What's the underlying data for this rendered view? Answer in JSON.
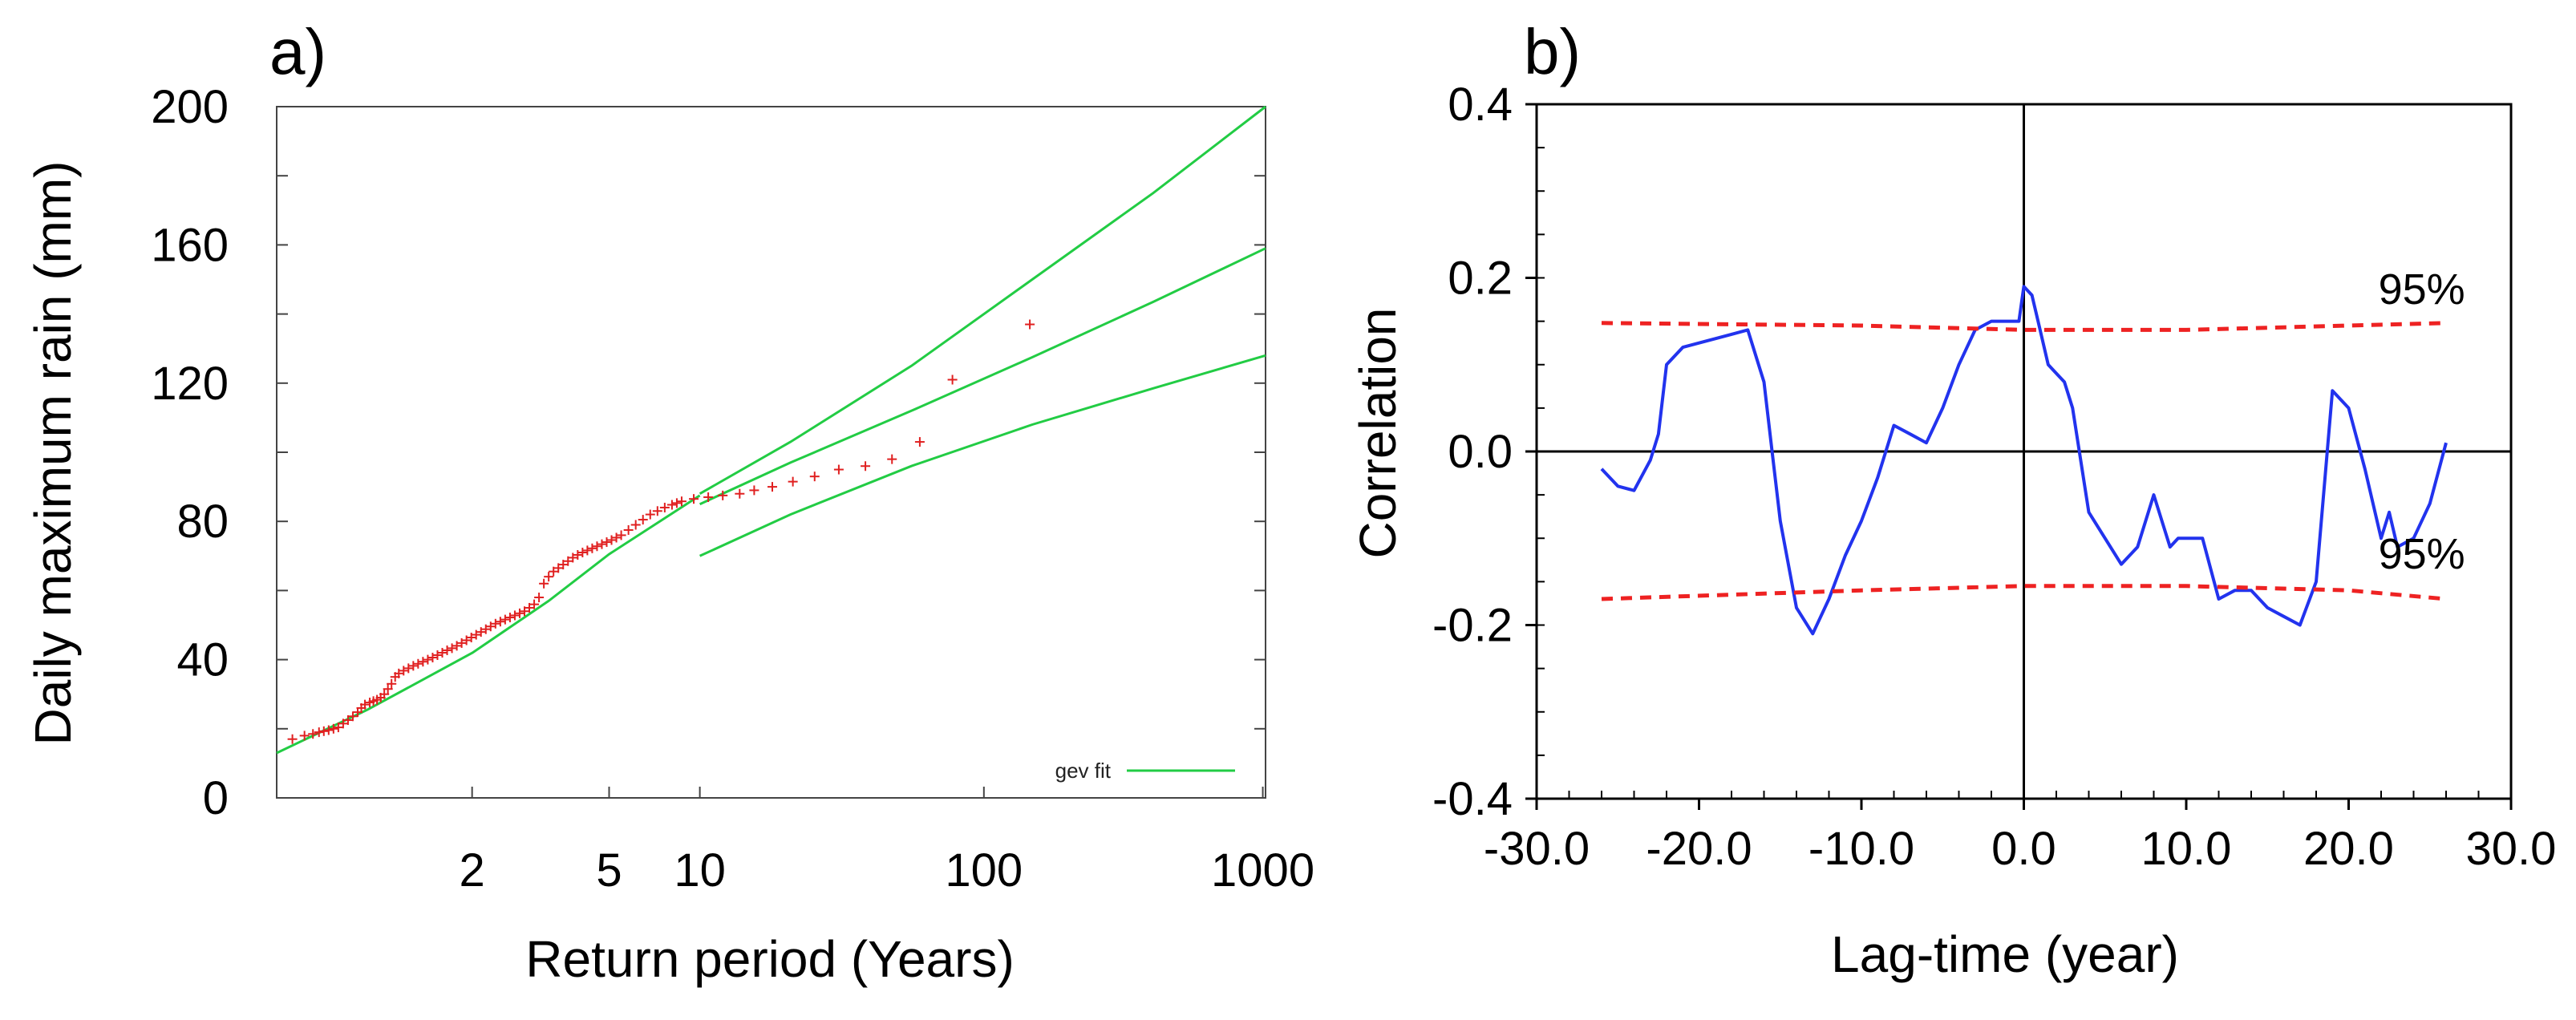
{
  "chart_data": [
    {
      "panel_label": "a)",
      "type": "scatter",
      "title": "",
      "xlabel": "Return period (Years)",
      "ylabel": "Daily maximum rain (mm)",
      "xscale": "gumbel-return-period",
      "ylim": [
        0,
        200
      ],
      "yticks": [
        0,
        40,
        80,
        120,
        160,
        200
      ],
      "xticks": [
        2,
        5,
        10,
        100,
        1000
      ],
      "x_range_reduced_variate": [
        -1.25,
        6.93
      ],
      "legend": {
        "position": "bottom-right",
        "entries": [
          {
            "label": "gev fit",
            "color": "#22cc44"
          }
        ]
      },
      "series": [
        {
          "name": "observations",
          "kind": "points",
          "marker": "plus",
          "color": "#e02020",
          "comment": "points given as [reduced variate y = -ln(-ln(1-1/T)), rain mm]",
          "points": [
            [
              -1.12,
              17.0
            ],
            [
              -1.02,
              18.0
            ],
            [
              -0.95,
              18.5
            ],
            [
              -0.9,
              19.0
            ],
            [
              -0.86,
              19.3
            ],
            [
              -0.82,
              19.6
            ],
            [
              -0.78,
              20.0
            ],
            [
              -0.74,
              20.4
            ],
            [
              -0.7,
              21.5
            ],
            [
              -0.66,
              22.5
            ],
            [
              -0.62,
              23.6
            ],
            [
              -0.58,
              24.8
            ],
            [
              -0.55,
              26.0
            ],
            [
              -0.52,
              27.0
            ],
            [
              -0.48,
              27.6
            ],
            [
              -0.45,
              28.0
            ],
            [
              -0.42,
              28.4
            ],
            [
              -0.39,
              29.0
            ],
            [
              -0.36,
              30.0
            ],
            [
              -0.33,
              31.5
            ],
            [
              -0.3,
              33.0
            ],
            [
              -0.27,
              35.0
            ],
            [
              -0.24,
              36.0
            ],
            [
              -0.2,
              36.8
            ],
            [
              -0.16,
              37.5
            ],
            [
              -0.12,
              38.2
            ],
            [
              -0.08,
              38.8
            ],
            [
              -0.04,
              39.4
            ],
            [
              0.0,
              40.0
            ],
            [
              0.04,
              40.6
            ],
            [
              0.08,
              41.3
            ],
            [
              0.12,
              42.0
            ],
            [
              0.16,
              42.7
            ],
            [
              0.2,
              43.3
            ],
            [
              0.24,
              44.0
            ],
            [
              0.28,
              44.8
            ],
            [
              0.32,
              45.6
            ],
            [
              0.36,
              46.4
            ],
            [
              0.4,
              47.2
            ],
            [
              0.44,
              48.0
            ],
            [
              0.48,
              48.8
            ],
            [
              0.52,
              49.6
            ],
            [
              0.56,
              50.4
            ],
            [
              0.6,
              51.0
            ],
            [
              0.64,
              51.6
            ],
            [
              0.68,
              52.2
            ],
            [
              0.72,
              52.8
            ],
            [
              0.76,
              53.4
            ],
            [
              0.8,
              54.0
            ],
            [
              0.84,
              55.0
            ],
            [
              0.88,
              56.0
            ],
            [
              0.92,
              58.0
            ],
            [
              0.96,
              62.0
            ],
            [
              1.0,
              64.0
            ],
            [
              1.04,
              65.5
            ],
            [
              1.08,
              66.5
            ],
            [
              1.12,
              67.5
            ],
            [
              1.16,
              68.5
            ],
            [
              1.2,
              69.5
            ],
            [
              1.24,
              70.3
            ],
            [
              1.28,
              71.0
            ],
            [
              1.32,
              71.6
            ],
            [
              1.36,
              72.2
            ],
            [
              1.4,
              72.8
            ],
            [
              1.44,
              73.4
            ],
            [
              1.48,
              74.0
            ],
            [
              1.52,
              74.6
            ],
            [
              1.56,
              75.3
            ],
            [
              1.6,
              76.0
            ],
            [
              1.66,
              77.5
            ],
            [
              1.72,
              79.0
            ],
            [
              1.78,
              80.5
            ],
            [
              1.84,
              82.0
            ],
            [
              1.9,
              83.0
            ],
            [
              1.96,
              84.0
            ],
            [
              2.02,
              84.8
            ],
            [
              2.06,
              85.3
            ],
            [
              2.1,
              85.8
            ],
            [
              2.2,
              86.5
            ],
            [
              2.32,
              87.0
            ],
            [
              2.44,
              87.5
            ],
            [
              2.58,
              88.0
            ],
            [
              2.7,
              89.0
            ],
            [
              2.85,
              90.0
            ],
            [
              3.02,
              91.5
            ],
            [
              3.2,
              93.0
            ],
            [
              3.4,
              95.0
            ],
            [
              3.62,
              96.0
            ],
            [
              3.84,
              98.0
            ],
            [
              4.07,
              103.0
            ],
            [
              4.34,
              121.0
            ],
            [
              4.98,
              137.0
            ]
          ]
        },
        {
          "name": "gev fit",
          "kind": "line",
          "color": "#22cc44",
          "points": [
            [
              -1.25,
              13.0
            ],
            [
              -0.5,
              25.5
            ],
            [
              0.37,
              42.0
            ],
            [
              1.0,
              57.0
            ],
            [
              1.5,
              70.5
            ],
            [
              2.25,
              87.5
            ]
          ]
        },
        {
          "name": "gev fit upper",
          "kind": "line",
          "color": "#22cc44",
          "points": [
            [
              2.25,
              88.0
            ],
            [
              3.0,
              103.0
            ],
            [
              4.0,
              125.0
            ],
            [
              5.0,
              150.0
            ],
            [
              6.0,
              175.0
            ],
            [
              6.93,
              200.0
            ]
          ]
        },
        {
          "name": "gev fit middle",
          "kind": "line",
          "color": "#22cc44",
          "points": [
            [
              2.25,
              85.0
            ],
            [
              3.0,
              97.0
            ],
            [
              4.0,
              112.0
            ],
            [
              5.0,
              127.5
            ],
            [
              6.0,
              143.5
            ],
            [
              6.93,
              159.0
            ]
          ]
        },
        {
          "name": "gev fit lower",
          "kind": "line",
          "color": "#22cc44",
          "points": [
            [
              2.25,
              70.0
            ],
            [
              3.0,
              82.0
            ],
            [
              4.0,
              96.0
            ],
            [
              5.0,
              108.0
            ],
            [
              6.0,
              118.5
            ],
            [
              6.93,
              128.0
            ]
          ]
        }
      ]
    },
    {
      "panel_label": "b)",
      "type": "line",
      "title": "",
      "xlabel": "Lag-time (year)",
      "ylabel": "Correlation",
      "xlim": [
        -30,
        30
      ],
      "ylim": [
        -0.4,
        0.4
      ],
      "xtick_labels": [
        "-30.0",
        "-20.0",
        "-10.0",
        "0.0",
        "10.0",
        "20.0",
        "30.0"
      ],
      "xtick_values": [
        -30,
        -20,
        -10,
        0,
        10,
        20,
        30
      ],
      "ytick_labels": [
        "-0.4",
        "-0.2",
        "0.0",
        "0.2",
        "0.4"
      ],
      "ytick_values": [
        -0.4,
        -0.2,
        0.0,
        0.2,
        0.4
      ],
      "annotations": [
        {
          "text": "95%",
          "x": 24.5,
          "y": 0.17
        },
        {
          "text": "95%",
          "x": 24.5,
          "y": -0.135
        }
      ],
      "series": [
        {
          "name": "cross-correlation",
          "color": "#2233ee",
          "x": [
            -26,
            -25,
            -24,
            -23,
            -22.5,
            -22,
            -21,
            -20,
            -19,
            -18,
            -17,
            -16,
            -15.5,
            -15,
            -14,
            -13,
            -12,
            -11,
            -10,
            -9,
            -8,
            -7,
            -6,
            -5,
            -4,
            -3,
            -2,
            -1,
            -0.3,
            0,
            0.5,
            1,
            1.5,
            2,
            2.5,
            3,
            4,
            5,
            6,
            7,
            8,
            9,
            9.5,
            10,
            11,
            12,
            13,
            14,
            15,
            16,
            17,
            18,
            19,
            20,
            21,
            22,
            22.5,
            23,
            24,
            25,
            26
          ],
          "values": [
            -0.02,
            -0.04,
            -0.045,
            -0.01,
            0.02,
            0.1,
            0.12,
            0.125,
            0.13,
            0.135,
            0.14,
            0.08,
            0.0,
            -0.08,
            -0.18,
            -0.21,
            -0.17,
            -0.12,
            -0.08,
            -0.03,
            0.03,
            0.02,
            0.01,
            0.05,
            0.1,
            0.14,
            0.15,
            0.15,
            0.15,
            0.19,
            0.18,
            0.14,
            0.1,
            0.09,
            0.08,
            0.05,
            -0.07,
            -0.1,
            -0.13,
            -0.11,
            -0.05,
            -0.11,
            -0.1,
            -0.1,
            -0.1,
            -0.17,
            -0.16,
            -0.16,
            -0.18,
            -0.19,
            -0.2,
            -0.15,
            0.07,
            0.05,
            -0.02,
            -0.1,
            -0.07,
            -0.11,
            -0.1,
            -0.06,
            0.01
          ]
        },
        {
          "name": "95% upper",
          "color": "#ee2222",
          "dashed": true,
          "x": [
            -26,
            -10,
            0,
            10,
            20,
            26
          ],
          "values": [
            0.148,
            0.145,
            0.14,
            0.14,
            0.145,
            0.148
          ]
        },
        {
          "name": "95% lower",
          "color": "#ee2222",
          "dashed": true,
          "x": [
            -26,
            -10,
            0,
            10,
            20,
            26
          ],
          "values": [
            -0.17,
            -0.16,
            -0.155,
            -0.155,
            -0.16,
            -0.17
          ]
        }
      ]
    }
  ]
}
